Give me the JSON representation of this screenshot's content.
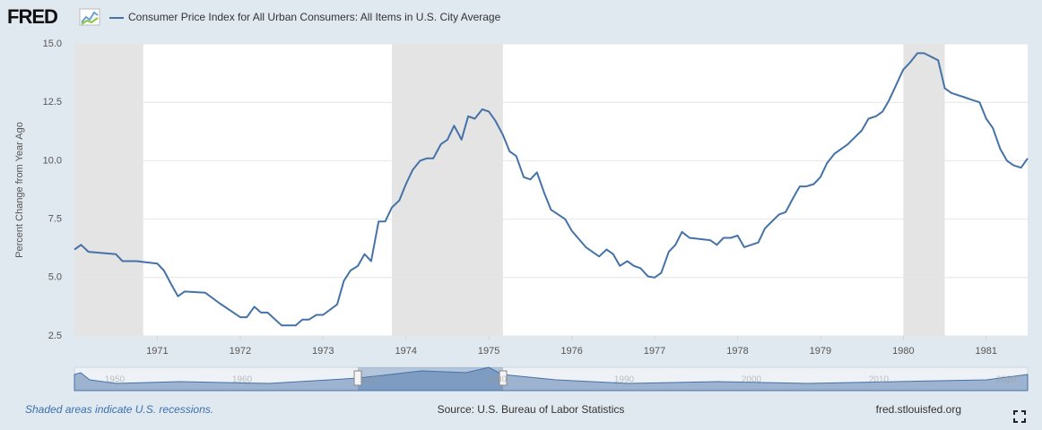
{
  "logo": "FRED",
  "chart_data": {
    "type": "line",
    "y_label": "Percent Change from Year Ago",
    "x": [
      1970.0,
      1970.08,
      1970.17,
      1970.33,
      1970.5,
      1970.58,
      1970.75,
      1971.0,
      1971.08,
      1971.17,
      1971.25,
      1971.33,
      1971.58,
      1971.75,
      1972.0,
      1972.08,
      1972.17,
      1972.25,
      1972.33,
      1972.5,
      1972.67,
      1972.75,
      1972.83,
      1972.92,
      1973.0,
      1973.17,
      1973.25,
      1973.33,
      1973.42,
      1973.5,
      1973.58,
      1973.67,
      1973.75,
      1973.83,
      1973.92,
      1974.0,
      1974.08,
      1974.17,
      1974.25,
      1974.33,
      1974.42,
      1974.5,
      1974.58,
      1974.67,
      1974.75,
      1974.83,
      1974.92,
      1975.0,
      1975.08,
      1975.17,
      1975.25,
      1975.33,
      1975.42,
      1975.5,
      1975.58,
      1975.67,
      1975.75,
      1975.92,
      1976.0,
      1976.17,
      1976.33,
      1976.42,
      1976.5,
      1976.58,
      1976.67,
      1976.75,
      1976.83,
      1976.92,
      1977.0,
      1977.08,
      1977.17,
      1977.25,
      1977.33,
      1977.42,
      1977.67,
      1977.75,
      1977.83,
      1977.92,
      1978.0,
      1978.08,
      1978.25,
      1978.33,
      1978.5,
      1978.58,
      1978.67,
      1978.75,
      1978.83,
      1978.92,
      1979.0,
      1979.08,
      1979.17,
      1979.33,
      1979.5,
      1979.58,
      1979.67,
      1979.75,
      1979.83,
      1980.0,
      1980.08,
      1980.17,
      1980.25,
      1980.42,
      1980.5,
      1980.58,
      1980.75,
      1980.83,
      1980.92,
      1981.0,
      1981.08,
      1981.17,
      1981.25,
      1981.33,
      1981.42,
      1981.5
    ],
    "series": [
      {
        "name": "Consumer Price Index for All Urban Consumers: All Items in U.S. City Average",
        "color": "#4572a7",
        "values": [
          6.2,
          6.4,
          6.1,
          6.05,
          6.0,
          5.7,
          5.7,
          5.6,
          5.3,
          4.7,
          4.2,
          4.4,
          4.35,
          3.9,
          3.3,
          3.3,
          3.75,
          3.5,
          3.5,
          2.95,
          2.95,
          3.2,
          3.2,
          3.4,
          3.4,
          3.85,
          4.85,
          5.3,
          5.5,
          6.0,
          5.7,
          7.4,
          7.4,
          8.0,
          8.3,
          9.0,
          9.6,
          10.0,
          10.1,
          10.1,
          10.7,
          10.9,
          11.5,
          10.9,
          11.9,
          11.8,
          12.2,
          12.1,
          11.7,
          11.1,
          10.4,
          10.2,
          9.3,
          9.2,
          9.5,
          8.6,
          7.9,
          7.5,
          7.0,
          6.3,
          5.9,
          6.2,
          6.0,
          5.5,
          5.7,
          5.5,
          5.4,
          5.05,
          5.0,
          5.2,
          6.1,
          6.4,
          6.95,
          6.7,
          6.6,
          6.4,
          6.7,
          6.7,
          6.8,
          6.3,
          6.5,
          7.1,
          7.7,
          7.8,
          8.4,
          8.9,
          8.9,
          9.0,
          9.3,
          9.9,
          10.3,
          10.7,
          11.3,
          11.8,
          11.9,
          12.1,
          12.6,
          13.9,
          14.2,
          14.6,
          14.6,
          14.3,
          13.1,
          12.9,
          12.7,
          12.6,
          12.5,
          11.8,
          11.4,
          10.5,
          10.0,
          9.8,
          9.7,
          10.1
        ]
      }
    ],
    "recessions": [
      [
        1970.0,
        1970.83
      ],
      [
        1973.83,
        1975.17
      ],
      [
        1980.0,
        1980.5
      ]
    ],
    "xlim": [
      1970.0,
      1981.5
    ],
    "xticks": [
      1971,
      1972,
      1973,
      1974,
      1975,
      1976,
      1977,
      1978,
      1979,
      1980,
      1981
    ],
    "ylim": [
      2.5,
      15.0
    ],
    "yticks": [
      2.5,
      {
        "value": 5,
        "label": "5.0"
      },
      7.5,
      {
        "value": 10,
        "label": "10.0"
      },
      12.5,
      {
        "value": 15,
        "label": "15.0"
      }
    ],
    "grid": true
  },
  "navigator": {
    "labels": [
      "1950",
      "1960",
      "1970",
      "1980",
      "1990",
      "2000",
      "2010",
      "2020"
    ]
  },
  "footer": {
    "note": "Shaded areas indicate U.S. recessions.",
    "source": "Source: U.S. Bureau of Labor Statistics",
    "site": "fred.stlouisfed.org"
  }
}
